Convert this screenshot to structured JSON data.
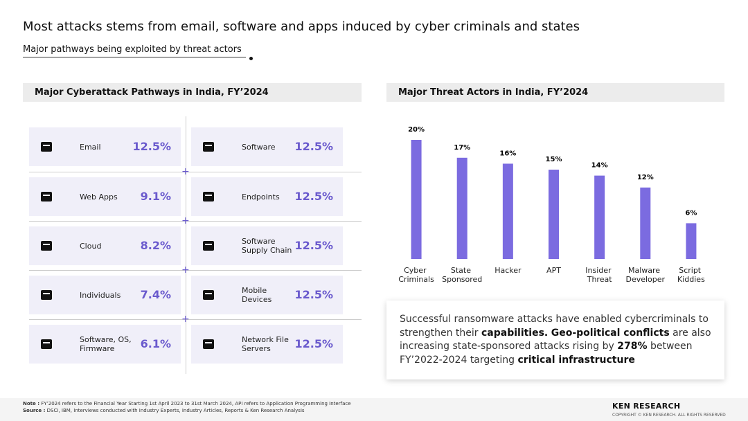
{
  "title": "Most attacks stems from email, software and apps induced by cyber criminals and states",
  "subtitle": "Major pathways being exploited by threat actors",
  "pathways": {
    "heading": "Major Cyberattack Pathways in India, FY’2024",
    "items": [
      {
        "label": "Email",
        "value": "12.5%"
      },
      {
        "label": "Software",
        "value": "12.5%"
      },
      {
        "label": "Web Apps",
        "value": "9.1%"
      },
      {
        "label": "Endpoints",
        "value": "12.5%"
      },
      {
        "label": "Cloud",
        "value": "8.2%"
      },
      {
        "label": "Software Supply Chain",
        "value": "12.5%"
      },
      {
        "label": "Individuals",
        "value": "7.4%"
      },
      {
        "label": "Mobile Devices",
        "value": "12.5%"
      },
      {
        "label": "Software, OS, Firmware",
        "value": "6.1%"
      },
      {
        "label": "Network File Servers",
        "value": "12.5%"
      }
    ]
  },
  "chart_data": {
    "type": "bar",
    "title": "Major Threat Actors in India, FY’2024",
    "categories": [
      "Cyber Criminals",
      "State Sponsored",
      "Hacker",
      "APT",
      "Insider Threat",
      "Malware Developer",
      "Script Kiddies"
    ],
    "values": [
      20,
      17,
      16,
      15,
      14,
      12,
      6
    ],
    "value_labels": [
      "20%",
      "17%",
      "16%",
      "15%",
      "14%",
      "12%",
      "6%"
    ],
    "color": "#7b6be0",
    "ylim": [
      0,
      20
    ]
  },
  "insight": {
    "parts": [
      {
        "text": "Successful ransomware attacks have enabled cybercriminals to strengthen their ",
        "bold": false
      },
      {
        "text": "capabilities.",
        "bold": true
      },
      {
        "text": " ",
        "bold": false
      },
      {
        "text": "Geo-political conflicts",
        "bold": true
      },
      {
        "text": " are also increasing state-sponsored attacks rising by ",
        "bold": false
      },
      {
        "text": "278%",
        "bold": true
      },
      {
        "text": " between FY’2022-2024 targeting ",
        "bold": false
      },
      {
        "text": "critical infrastructure",
        "bold": true
      }
    ]
  },
  "footer": {
    "note_label": "Note :",
    "note": "FY’2024 refers to the Financial Year Starting 1st April 2023 to 31st March 2024, API refers to Application Programming Interface",
    "source_label": "Source :",
    "source": "DSCI, IBM, Interviews conducted with Industry Experts, Industry Articles, Reports & Ken Research Analysis",
    "brand": "KEN RESEARCH",
    "copyright": "COPYRIGHT © KEN RESEARCH. ALL RIGHTS RESERVED"
  }
}
